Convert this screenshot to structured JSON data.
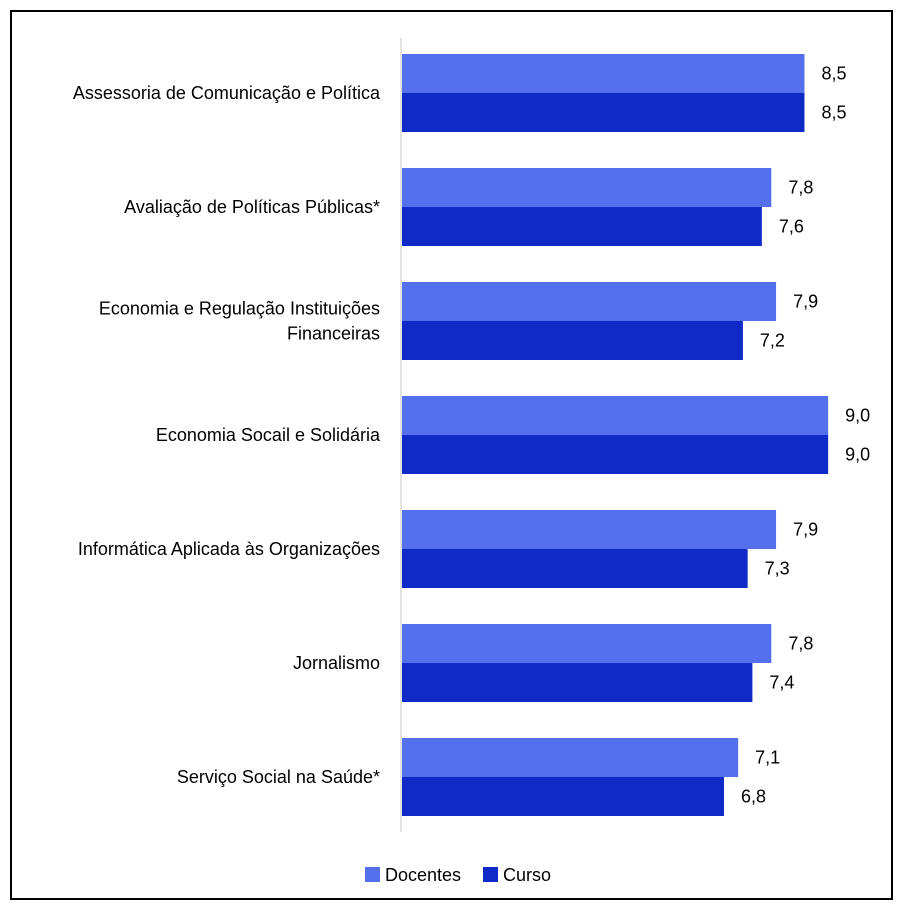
{
  "chart_data": {
    "type": "bar",
    "orientation": "horizontal",
    "categories": [
      [
        "Assessoria de Comunicação e Política"
      ],
      [
        "Avaliação de Políticas Públicas*"
      ],
      [
        "Economia e Regulação Instituições",
        "Financeiras"
      ],
      [
        "Economia Socail e Solidária"
      ],
      [
        "Informática Aplicada às Organizações"
      ],
      [
        "Jornalismo"
      ],
      [
        "Serviço Social na Saúde*"
      ]
    ],
    "series": [
      {
        "name": "Docentes",
        "color": "#5470EC",
        "values": [
          8.5,
          7.8,
          7.9,
          9.0,
          7.9,
          7.8,
          7.1
        ],
        "labels": [
          "8,5",
          "7,8",
          "7,9",
          "9,0",
          "7,9",
          "7,8",
          "7,1"
        ]
      },
      {
        "name": "Curso",
        "color": "#0F2AC7",
        "values": [
          8.5,
          7.6,
          7.2,
          9.0,
          7.3,
          7.4,
          6.8
        ],
        "labels": [
          "8,5",
          "7,6",
          "7,2",
          "9,0",
          "7,3",
          "7,4",
          "6,8"
        ]
      }
    ],
    "xlim": [
      0,
      10
    ],
    "grid": false,
    "legend_position": "bottom",
    "axis_line_color": "#D9D9D9"
  }
}
